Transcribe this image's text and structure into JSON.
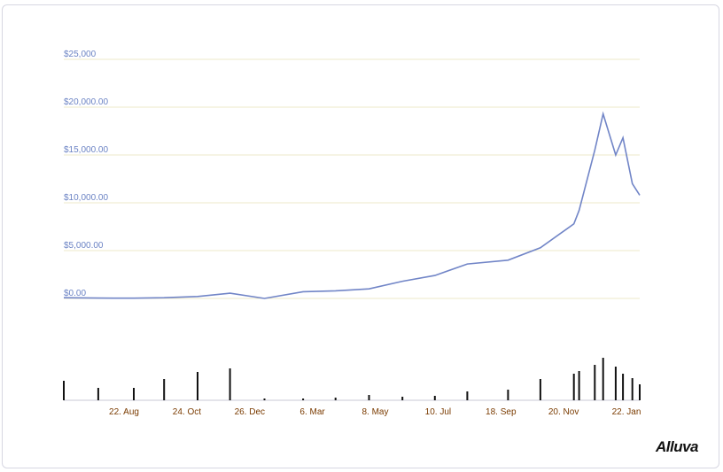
{
  "chart_data": {
    "type": "line",
    "x": [
      "2017-07-20",
      "2017-08-22",
      "2017-09-25",
      "2017-10-24",
      "2017-11-25",
      "2017-12-26",
      "2018-01-28",
      "2018-03-06",
      "2018-04-06",
      "2018-05-08",
      "2018-06-09",
      "2018-07-10",
      "2018-08-10",
      "2018-09-18",
      "2018-10-19",
      "2018-11-20",
      "2018-11-25",
      "2018-12-10",
      "2018-12-18",
      "2018-12-30",
      "2019-01-06",
      "2019-01-15",
      "2019-01-22"
    ],
    "series": [
      {
        "values": [
          70,
          40,
          30,
          70,
          200,
          550,
          0,
          700,
          800,
          1000,
          1800,
          2400,
          3600,
          4000,
          5300,
          7800,
          9200,
          15500,
          19300,
          15000,
          16800,
          12000,
          10800
        ],
        "color": "#7185c7"
      }
    ],
    "volume": [
      22,
      14,
      14,
      24,
      32,
      36,
      2,
      2,
      3,
      6,
      4,
      5,
      10,
      12,
      24,
      30,
      33,
      40,
      48,
      38,
      30,
      25,
      18
    ],
    "y_tick_labels": [
      "$0.00",
      "$5,000.00",
      "$10,000.00",
      "$15,000.00",
      "$20,000.00",
      "$25,000"
    ],
    "x_tick_labels": [
      "22. Aug",
      "24. Oct",
      "26. Dec",
      "6. Mar",
      "8. May",
      "10. Jul",
      "18. Sep",
      "20. Nov",
      "22. Jan"
    ],
    "ylim": [
      0,
      25000
    ],
    "grid": true,
    "legend": "none"
  },
  "branding": {
    "logo_text": "Alluva"
  },
  "colors": {
    "line": "#7185c7",
    "grid": "#ede8c8",
    "volume": "#111111",
    "x_labels": "#7a3b00",
    "y_labels": "#6b83c4"
  }
}
